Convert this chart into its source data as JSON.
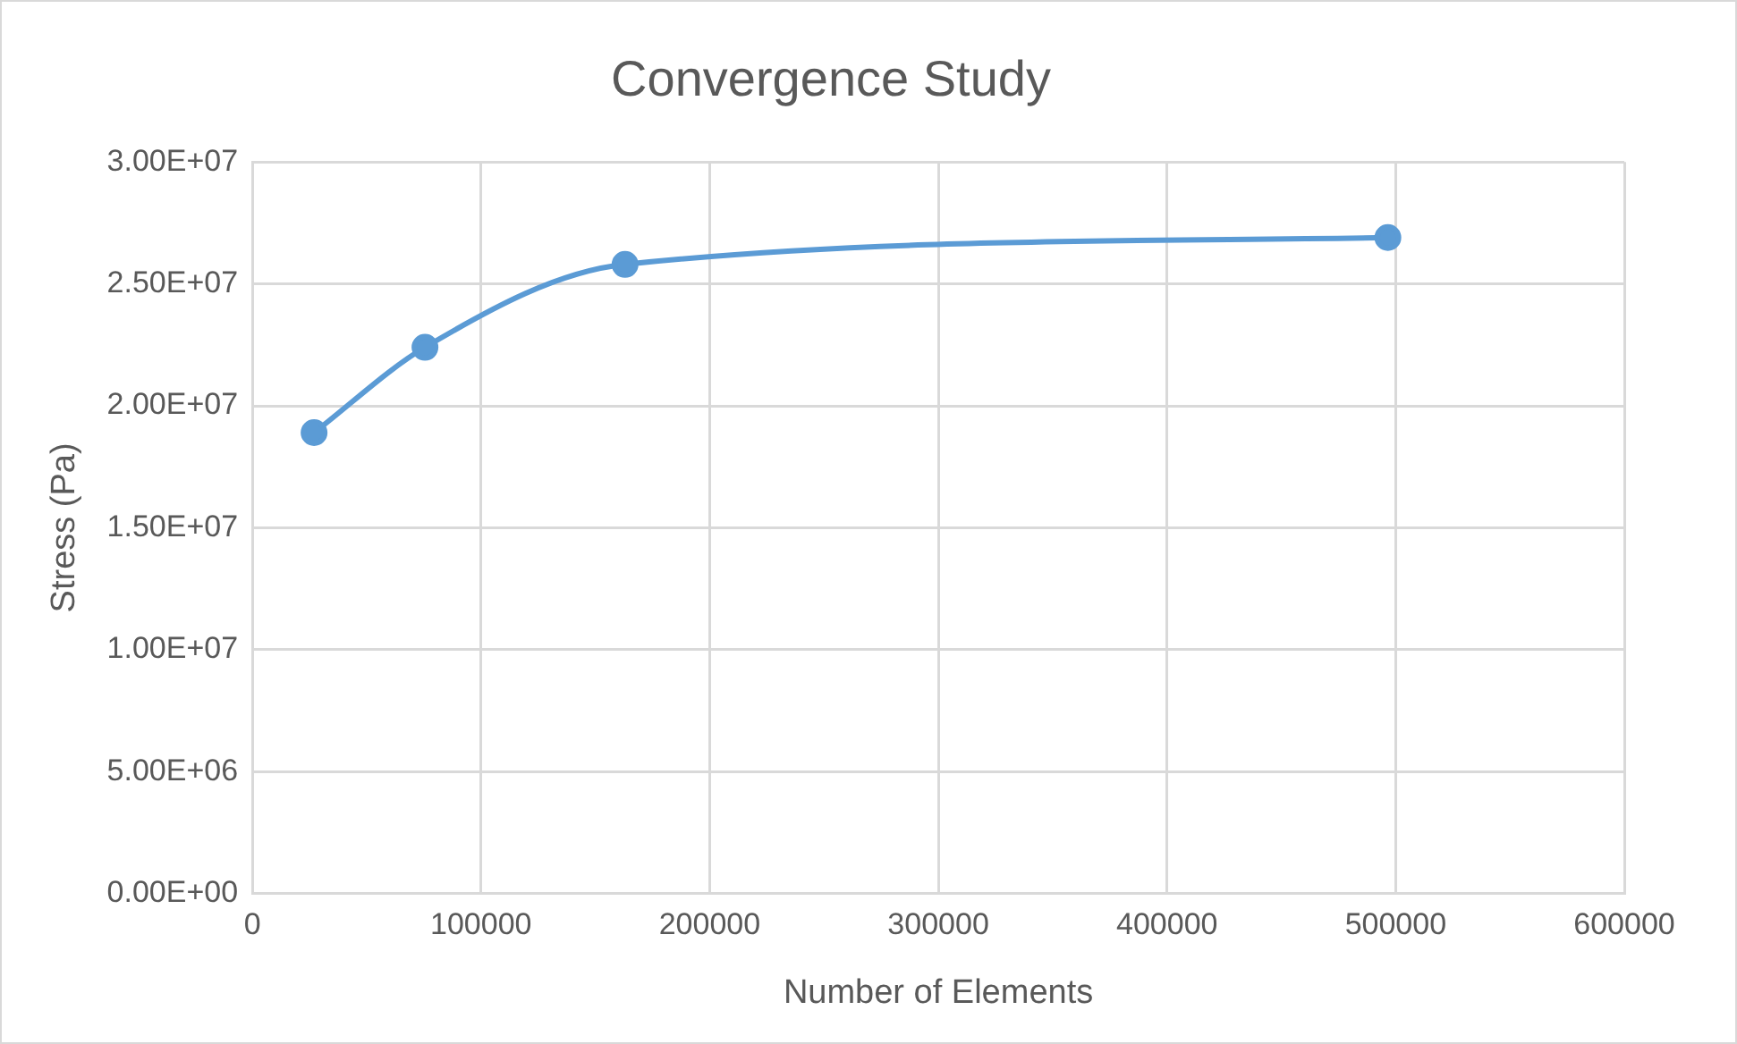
{
  "chart_data": {
    "type": "line",
    "title": "Convergence Study",
    "xlabel": "Number of Elements",
    "ylabel": "Stress (Pa)",
    "x": [
      27000,
      75500,
      163000,
      496600
    ],
    "series": [
      {
        "color": "#5b9bd5",
        "values": [
          18900000,
          22400000,
          25800000,
          26900000
        ]
      }
    ],
    "xlim": [
      0,
      600000
    ],
    "xticks": [
      0,
      100000,
      200000,
      300000,
      400000,
      500000,
      600000
    ],
    "ylim": [
      0,
      30000000
    ],
    "yticks": [
      {
        "value": 0,
        "label": "0.00E+00"
      },
      {
        "value": 5000000,
        "label": "5.00E+06"
      },
      {
        "value": 10000000,
        "label": "1.00E+07"
      },
      {
        "value": 15000000,
        "label": "1.50E+07"
      },
      {
        "value": 20000000,
        "label": "2.00E+07"
      },
      {
        "value": 25000000,
        "label": "2.50E+07"
      },
      {
        "value": 30000000,
        "label": "3.00E+07"
      }
    ],
    "grid": true,
    "legend": false,
    "marker": "circle",
    "line_style": "solid"
  }
}
